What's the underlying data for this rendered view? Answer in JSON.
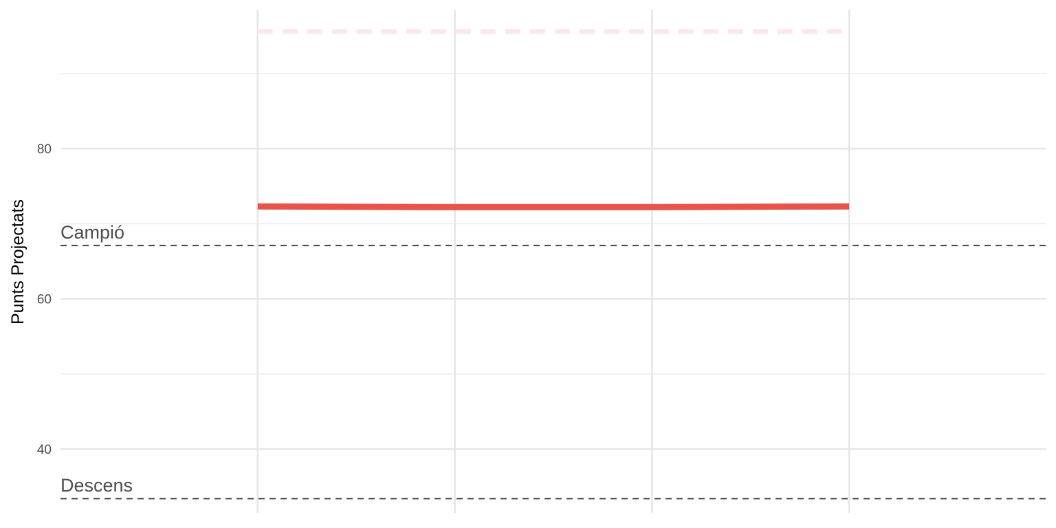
{
  "chart_data": {
    "type": "line",
    "title": "",
    "xlabel": "",
    "ylabel": "Punts Projectats",
    "x": [
      1,
      2,
      3,
      4
    ],
    "xlim": [
      0,
      5
    ],
    "ylim": [
      31.5,
      98.5
    ],
    "yticks": [
      40,
      60,
      80
    ],
    "grid": true,
    "series": [
      {
        "values": [
          72.3,
          72.2,
          72.2,
          72.3
        ],
        "color": "#e8534a"
      },
      {
        "values": [
          95.6,
          95.6,
          95.6,
          95.6
        ],
        "color": "#fde8e8",
        "style": "dashed"
      }
    ],
    "reference_lines": [
      {
        "label": "Campió",
        "value": 67.1,
        "color": "#4d4d4d"
      },
      {
        "label": "Descens",
        "value": 33.4,
        "color": "#4d4d4d"
      }
    ]
  }
}
